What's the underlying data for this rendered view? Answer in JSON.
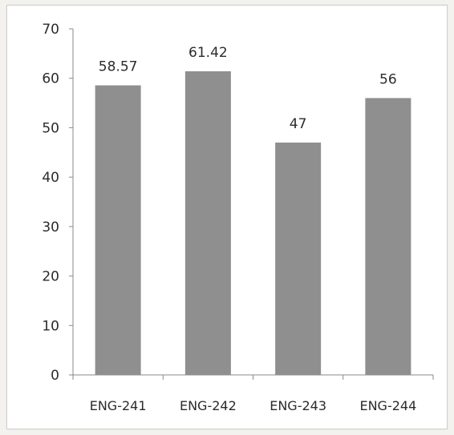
{
  "chart_data": {
    "type": "bar",
    "title": "",
    "xlabel": "",
    "ylabel": "",
    "categories": [
      "ENG-241",
      "ENG-242",
      "ENG-243",
      "ENG-244"
    ],
    "values": [
      58.57,
      61.42,
      47,
      56
    ],
    "data_labels": [
      "58.57",
      "61.42",
      "47",
      "56"
    ],
    "ylim": [
      0,
      70
    ],
    "yticks": [
      "0",
      "10",
      "20",
      "30",
      "40",
      "50",
      "60",
      "70"
    ],
    "grid": false,
    "legend": "none",
    "colors": {
      "bar": "#8f8f8f",
      "axis": "#8a8a8a",
      "text": "#2b2b2b"
    }
  }
}
